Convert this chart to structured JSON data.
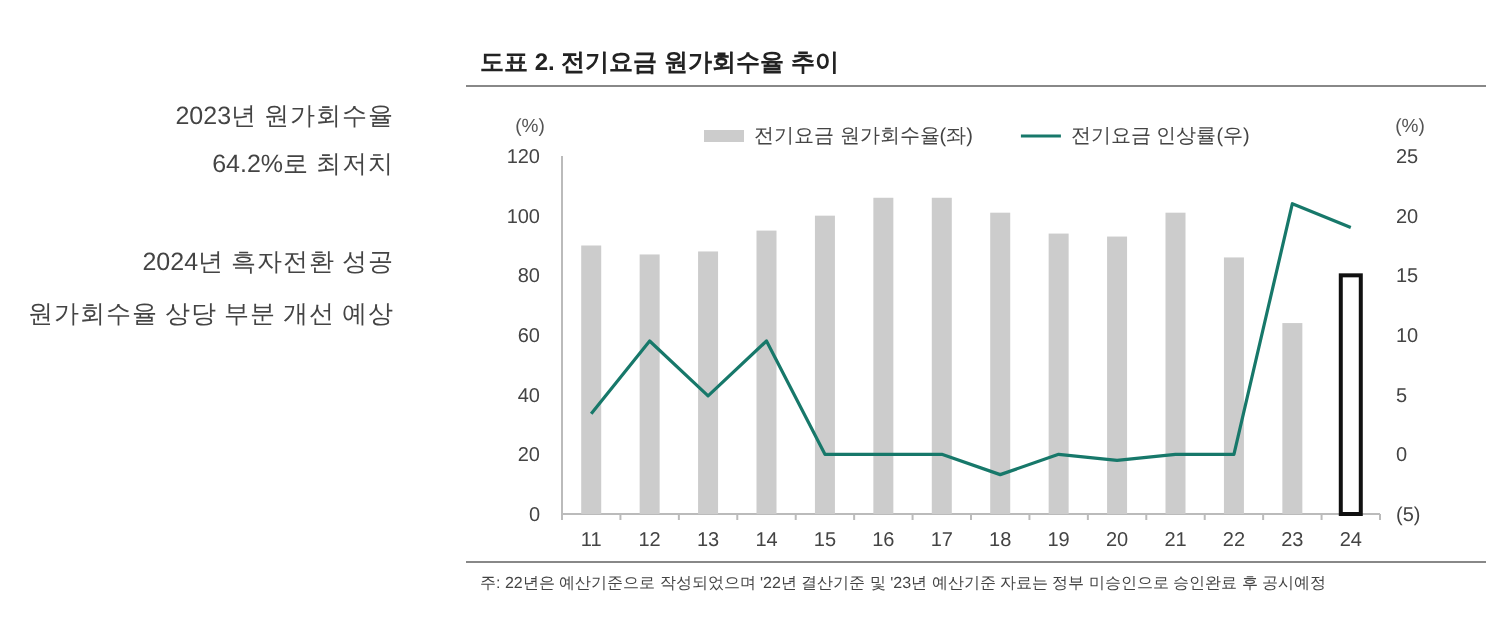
{
  "chart_data": {
    "type": "bar",
    "title": "도표 2. 전기요금 원가회수율 추이",
    "ylabel": "(%)",
    "y2label": "(%)",
    "annotations": [
      "2023년 원가회수율",
      "64.2%로 최저치",
      "2024년 흑자전환 성공",
      "원가회수율 상당 부분 개선 예상",
      "주: 22년은 예산기준으로 작성되었으며 '22년 결산기준 및 '23년 예산기준 자료는 정부 미승인으로 승인완료 후 공시예정"
    ],
    "categories": [
      "11",
      "12",
      "13",
      "14",
      "15",
      "16",
      "17",
      "18",
      "19",
      "20",
      "21",
      "22",
      "23",
      "24"
    ],
    "series": [
      {
        "name": "전기요금 원가회수율(좌)",
        "color": "#cccccc",
        "colors": [
          "#cccccc",
          "#cccccc",
          "#cccccc",
          "#cccccc",
          "#cccccc",
          "#cccccc",
          "#cccccc",
          "#cccccc",
          "#cccccc",
          "#cccccc",
          "#cccccc",
          "#cccccc",
          "#cccccc",
          "#ffffff"
        ],
        "values": [
          90,
          87,
          88,
          95,
          100,
          106,
          106,
          101,
          94,
          93,
          101,
          86,
          64,
          80
        ]
      },
      {
        "name": "전기요금 인상률(우)",
        "type": "line",
        "axis": "y2",
        "color": "#17786a",
        "values": [
          3.4,
          9.5,
          4.9,
          9.5,
          0,
          0,
          0,
          -1.7,
          0,
          -0.5,
          0,
          0,
          21,
          19
        ]
      }
    ],
    "ylim": [
      0,
      120
    ],
    "yticks": [
      0,
      20,
      40,
      60,
      80,
      100,
      120
    ],
    "y2lim": [
      -5,
      25
    ],
    "y2ticks": [
      {
        "value": -5,
        "label": "(5)"
      },
      0,
      5,
      10,
      15,
      20,
      25
    ],
    "legend": "top",
    "grid": false,
    "marker": "none",
    "line_style": "solid"
  }
}
